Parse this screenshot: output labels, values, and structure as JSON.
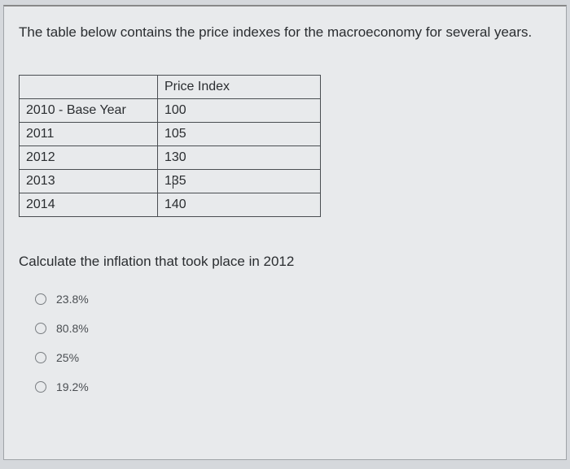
{
  "intro": "The table below contains the price indexes for the macroeconomy for several years.",
  "table": {
    "header_blank": "",
    "header_index": "Price Index",
    "rows": [
      {
        "year": "2010 - Base Year",
        "index": "100"
      },
      {
        "year": "2011",
        "index": "105"
      },
      {
        "year": "2012",
        "index": "130"
      },
      {
        "year": "2013",
        "index": "135"
      },
      {
        "year": "2014",
        "index": "140"
      }
    ]
  },
  "question": "Calculate the inflation that took place in 2012",
  "options": {
    "a": "23.8%",
    "b": "80.8%",
    "c": "25%",
    "d": "19.2%"
  },
  "colors": {
    "panel_bg": "#e8eaec",
    "body_bg": "#d5d8dc",
    "border": "#4a4e52",
    "text": "#2a2d30",
    "option_text": "#4a4e52",
    "radio_border": "#7a7e82"
  }
}
